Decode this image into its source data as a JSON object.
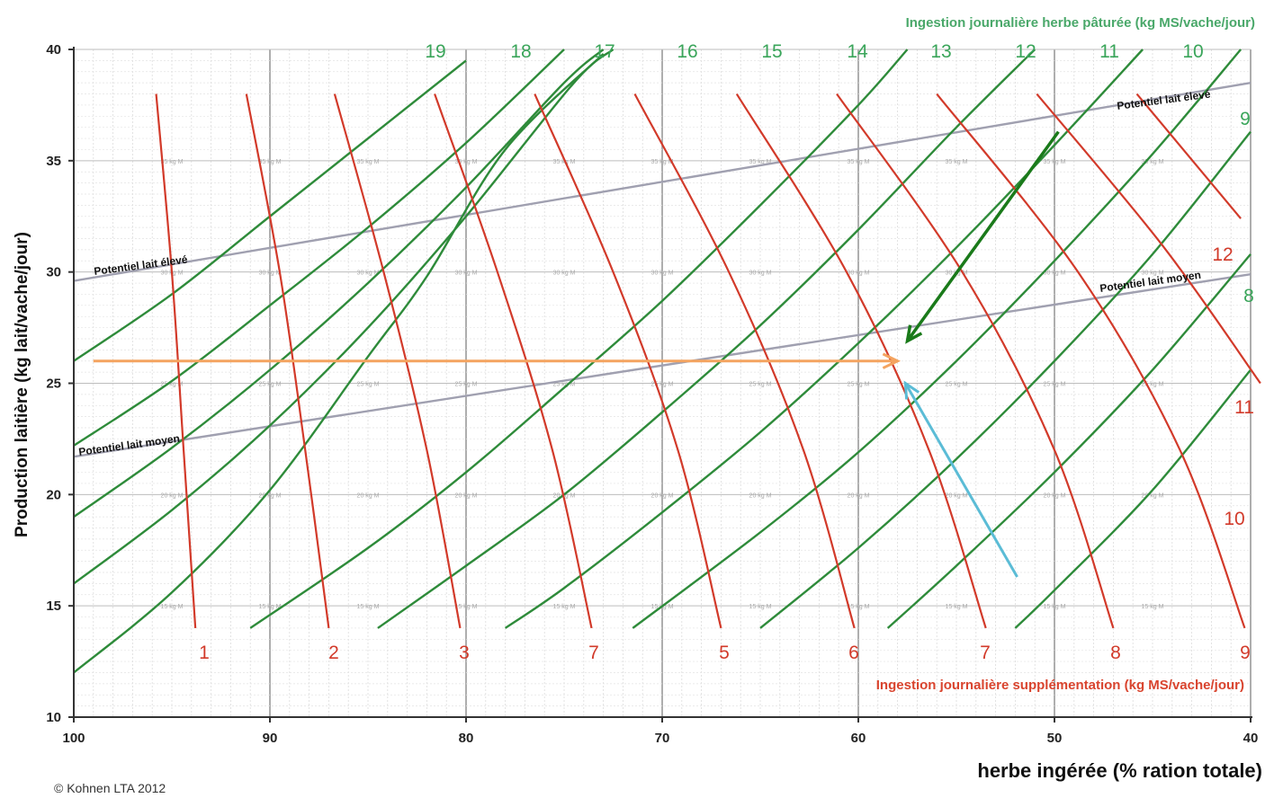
{
  "chart_data": {
    "type": "line",
    "xlabel": "herbe ingérée (% ration totale)",
    "ylabel": "Production laitière (kg lait/vache/jour)",
    "title_top": "Ingestion journalière herbe pâturée  (kg MS/vache/jour)",
    "title_bottom": "Ingestion journalière supplémentation   (kg MS/vache/jour)",
    "copyright": "© Kohnen LTA  2012",
    "xlim": [
      100,
      40
    ],
    "ylim": [
      10,
      40
    ],
    "x_ticks": [
      "100",
      "90",
      "80",
      "70",
      "60",
      "50",
      "40"
    ],
    "y_ticks": [
      "10",
      "15",
      "20",
      "25",
      "30",
      "35",
      "40"
    ],
    "colors": {
      "grass": "#2e8b3a",
      "supplement": "#d23a2a",
      "potential": "#a0a0b0",
      "orange_arrow": "#f4a460",
      "green_arrow": "#1a7a1a",
      "blue_arrow": "#5bbcd6"
    },
    "grass_series": [
      {
        "label": "19",
        "points": [
          [
            100,
            12
          ],
          [
            95,
            15.6
          ],
          [
            90,
            20.2
          ],
          [
            85,
            26.2
          ],
          [
            82,
            29.8
          ],
          [
            78,
            35.5
          ],
          [
            73,
            39.8
          ]
        ]
      },
      {
        "label": "18",
        "points": [
          [
            100,
            16
          ],
          [
            95,
            19.3
          ],
          [
            90,
            23.1
          ],
          [
            85,
            27.5
          ],
          [
            80,
            32.5
          ],
          [
            74.5,
            38.5
          ],
          [
            72.5,
            40
          ]
        ]
      },
      {
        "label": "17",
        "points": [
          [
            100,
            19
          ],
          [
            95,
            22.1
          ],
          [
            90,
            25.6
          ],
          [
            85,
            29.5
          ],
          [
            80,
            33.8
          ],
          [
            75,
            38.5
          ],
          [
            73,
            40
          ]
        ]
      },
      {
        "label": "16",
        "points": [
          [
            100,
            22.2
          ],
          [
            95,
            25.1
          ],
          [
            90,
            28.5
          ],
          [
            85,
            32
          ],
          [
            80,
            35.8
          ],
          [
            75,
            40
          ]
        ]
      },
      {
        "label": "15",
        "points": [
          [
            100,
            26
          ],
          [
            95,
            29
          ],
          [
            90,
            32.5
          ],
          [
            85,
            36
          ],
          [
            80,
            39.5
          ]
        ]
      },
      {
        "label": "14",
        "points": [
          [
            91,
            14
          ],
          [
            85,
            17.6
          ],
          [
            80,
            21
          ],
          [
            75,
            24.8
          ],
          [
            70,
            28.7
          ],
          [
            65,
            33
          ],
          [
            60,
            37.5
          ],
          [
            57.5,
            40
          ]
        ]
      },
      {
        "label": "13",
        "points": [
          [
            84.5,
            14
          ],
          [
            80,
            16.8
          ],
          [
            75,
            20
          ],
          [
            70,
            23.7
          ],
          [
            65,
            27.6
          ],
          [
            60,
            31.9
          ],
          [
            55,
            36.5
          ],
          [
            51,
            40
          ]
        ]
      },
      {
        "label": "12",
        "points": [
          [
            78,
            14
          ],
          [
            75,
            15.8
          ],
          [
            70,
            19.2
          ],
          [
            65,
            22.8
          ],
          [
            60,
            26.8
          ],
          [
            55,
            31.1
          ],
          [
            50,
            35.7
          ],
          [
            45.5,
            40
          ]
        ]
      },
      {
        "label": "11",
        "points": [
          [
            71.5,
            14
          ],
          [
            65,
            18.3
          ],
          [
            60,
            21.9
          ],
          [
            55,
            26
          ],
          [
            50,
            30.5
          ],
          [
            45,
            35.3
          ],
          [
            40.5,
            40
          ]
        ]
      },
      {
        "label": "10",
        "points": [
          [
            65,
            14
          ],
          [
            60,
            17.6
          ],
          [
            55,
            21.6
          ],
          [
            50,
            26
          ],
          [
            45,
            30.8
          ],
          [
            40,
            36.3
          ]
        ]
      },
      {
        "label": "9",
        "points": [
          [
            58.5,
            14
          ],
          [
            55,
            16.8
          ],
          [
            50,
            21
          ],
          [
            45,
            25.6
          ],
          [
            40,
            30.8
          ]
        ]
      },
      {
        "label": "8",
        "points": [
          [
            52,
            14
          ],
          [
            50,
            15.7
          ],
          [
            45,
            20.2
          ],
          [
            40,
            25.6
          ]
        ]
      }
    ],
    "supplement_series": [
      {
        "label": "1",
        "points": [
          [
            95.8,
            38
          ],
          [
            95,
            30
          ],
          [
            94.4,
            22
          ],
          [
            93.8,
            14
          ]
        ]
      },
      {
        "label": "2",
        "points": [
          [
            91.2,
            38
          ],
          [
            89.5,
            30
          ],
          [
            88.2,
            22
          ],
          [
            87,
            14
          ]
        ]
      },
      {
        "label": "3",
        "points": [
          [
            86.7,
            38
          ],
          [
            84.2,
            30
          ],
          [
            82,
            22
          ],
          [
            80.3,
            14
          ]
        ]
      },
      {
        "label": "7",
        "points": [
          [
            81.6,
            38
          ],
          [
            78.4,
            30
          ],
          [
            75.6,
            22
          ],
          [
            73.6,
            14
          ]
        ]
      },
      {
        "label": "5",
        "points": [
          [
            76.5,
            38
          ],
          [
            72.5,
            30
          ],
          [
            69.2,
            22
          ],
          [
            67,
            14
          ]
        ]
      },
      {
        "label": "6",
        "points": [
          [
            71.4,
            38
          ],
          [
            66.6,
            30
          ],
          [
            62.8,
            22
          ],
          [
            60.2,
            14
          ]
        ]
      },
      {
        "label": "7",
        "points": [
          [
            66.2,
            38
          ],
          [
            60.6,
            30
          ],
          [
            56.4,
            22
          ],
          [
            53.5,
            14
          ]
        ]
      },
      {
        "label": "8",
        "points": [
          [
            61.1,
            38
          ],
          [
            54.7,
            30
          ],
          [
            50,
            22
          ],
          [
            47,
            14
          ]
        ]
      },
      {
        "label": "9",
        "points": [
          [
            56,
            38
          ],
          [
            48.8,
            30
          ],
          [
            43.6,
            22
          ],
          [
            40.3,
            14
          ]
        ]
      },
      {
        "label": "10",
        "points": [
          [
            50.9,
            38
          ],
          [
            44.5,
            31.2
          ],
          [
            39.5,
            25
          ]
        ]
      },
      {
        "label": "11",
        "points": [
          [
            45.8,
            38
          ],
          [
            40.5,
            32.4
          ]
        ]
      }
    ],
    "potential_lines": [
      {
        "label": "Potentiel lait élevé",
        "points": [
          [
            100,
            29.6
          ],
          [
            40,
            38.5
          ]
        ]
      },
      {
        "label": "Potentiel lait  moyen",
        "points": [
          [
            100,
            21.7
          ],
          [
            40,
            29.9
          ]
        ]
      }
    ],
    "top_labels": [
      "19",
      "18",
      "17",
      "16",
      "15",
      "14",
      "13",
      "12",
      "11",
      "10",
      "9",
      "8"
    ],
    "bottom_labels": [
      "1",
      "2",
      "3",
      "7",
      "5",
      "6",
      "7",
      "8",
      "9",
      "12",
      "11",
      "10"
    ],
    "arrows": [
      {
        "name": "orange",
        "from": [
          99,
          26
        ],
        "to": [
          58,
          26
        ]
      },
      {
        "name": "green",
        "from": [
          49.8,
          36.3
        ],
        "to": [
          57.5,
          26.9
        ]
      },
      {
        "name": "blue",
        "from": [
          51.9,
          16.3
        ],
        "to": [
          57.6,
          25
        ]
      }
    ]
  }
}
